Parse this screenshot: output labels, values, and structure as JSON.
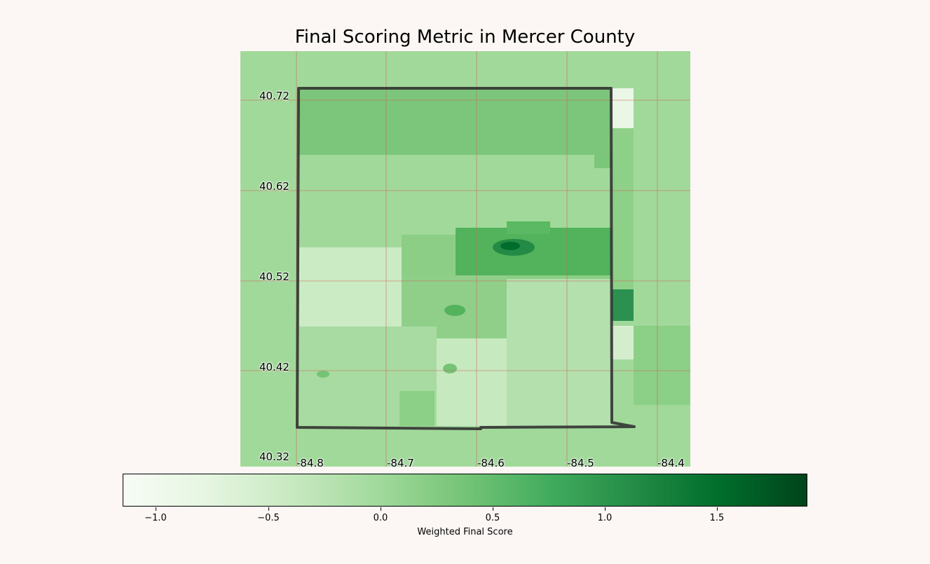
{
  "title": "Final Scoring Metric in Mercer County",
  "map": {
    "latitude_labels": [
      "40.72",
      "40.62",
      "40.52",
      "40.42",
      "40.32"
    ],
    "longitude_labels": [
      "-84.8",
      "-84.7",
      "-84.6",
      "-84.5",
      "-84.4"
    ],
    "colormap": "Greens",
    "boundary_color": "#333333",
    "grid_color": "#cc6655"
  },
  "colorbar": {
    "label": "Weighted Final Score",
    "range": [
      -1.15,
      1.9
    ],
    "ticks": [
      "−1.0",
      "−0.5",
      "0.0",
      "0.5",
      "1.0",
      "1.5"
    ]
  }
}
